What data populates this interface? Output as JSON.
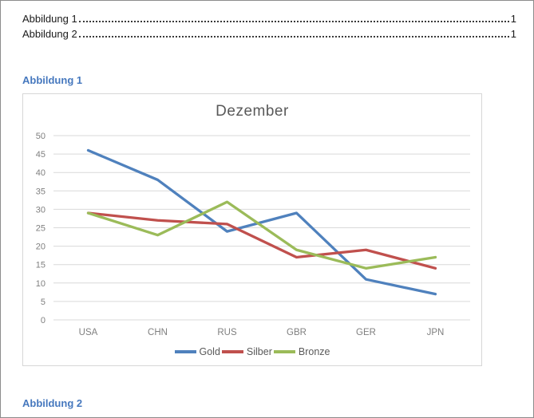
{
  "toc": {
    "entries": [
      {
        "label": "Abbildung 1",
        "page": "1"
      },
      {
        "label": "Abbildung 2",
        "page": "1"
      }
    ]
  },
  "captions": [
    "Abbildung 1",
    "Abbildung 2"
  ],
  "chart_data": {
    "type": "line",
    "title": "Dezember",
    "categories": [
      "USA",
      "CHN",
      "RUS",
      "GBR",
      "GER",
      "JPN"
    ],
    "series": [
      {
        "name": "Gold",
        "color": "#4F81BD",
        "values": [
          46,
          38,
          24,
          29,
          11,
          7
        ]
      },
      {
        "name": "Silber",
        "color": "#C0504D",
        "values": [
          29,
          27,
          26,
          17,
          19,
          14
        ]
      },
      {
        "name": "Bronze",
        "color": "#9BBB59",
        "values": [
          29,
          23,
          32,
          19,
          14,
          17
        ]
      }
    ],
    "ylim": [
      0,
      50
    ],
    "ytick_step": 5,
    "grid": true,
    "legend_position": "bottom"
  },
  "colors": {
    "caption": "#4678BE",
    "chart_title": "#595959",
    "axis_label": "#7F7F7F",
    "gridline": "#D9D9D9",
    "chart_border": "#D7D7D7",
    "page_border": "#8C8C8C",
    "legend_text": "#595959"
  }
}
